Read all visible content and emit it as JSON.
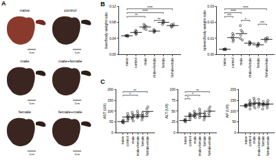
{
  "panel_labels": [
    "A",
    "B",
    "C"
  ],
  "photos": {
    "labels": [
      "naive",
      "control",
      "male",
      "male+female",
      "female",
      "female+male"
    ],
    "scale_bar": "1cm"
  },
  "chart_data": [
    {
      "type": "scatter",
      "y_label": "liver/body weight ratio",
      "categories": [
        "naive",
        "control",
        "male",
        "male+female",
        "female",
        "female+male"
      ],
      "values": [
        [
          0.045,
          0.046,
          0.047,
          0.048,
          0.046,
          0.047
        ],
        [
          0.05,
          0.055,
          0.052,
          0.058,
          0.054,
          0.06
        ],
        [
          0.062,
          0.068,
          0.075,
          0.07,
          0.065,
          0.072
        ],
        [
          0.055,
          0.06,
          0.058,
          0.062,
          0.057
        ],
        [
          0.075,
          0.08,
          0.085,
          0.078,
          0.082
        ],
        [
          0.068,
          0.074,
          0.07,
          0.076,
          0.072
        ]
      ],
      "means": [
        0.0465,
        0.0548,
        0.0687,
        0.0584,
        0.08,
        0.072
      ],
      "marker": "circle",
      "color": "#222222",
      "ylim": [
        0,
        0.12
      ],
      "yticks": [
        {
          "value": 0,
          "label": "0.00"
        },
        {
          "value": 0.04,
          "label": "0.04"
        },
        {
          "value": 0.08,
          "label": "0.08"
        },
        {
          "value": 0.12,
          "label": "0.12"
        }
      ],
      "comparisons": [
        {
          "from": 0,
          "to": 5,
          "label": "****"
        },
        {
          "from": 0,
          "to": 4,
          "label": "****"
        },
        {
          "from": 0,
          "to": 2,
          "label": "**"
        },
        {
          "from": 3,
          "to": 4,
          "label": "**"
        }
      ]
    },
    {
      "type": "scatter",
      "y_label": "spleen/body weight ratio",
      "categories": [
        "naive",
        "control",
        "male",
        "male+female",
        "female",
        "female+male"
      ],
      "values": [
        [
          0.003,
          0.0032,
          0.0035,
          0.003,
          0.0033,
          0.0031
        ],
        [
          0.008,
          0.011,
          0.01,
          0.013,
          0.009,
          0.012
        ],
        [
          0.009,
          0.012,
          0.015,
          0.018,
          0.01,
          0.014
        ],
        [
          0.006,
          0.007,
          0.008,
          0.0065,
          0.0075
        ],
        [
          0.005,
          0.006,
          0.0055,
          0.007,
          0.0065
        ],
        [
          0.008,
          0.01,
          0.009,
          0.0095,
          0.0105
        ]
      ],
      "means": [
        0.0032,
        0.0105,
        0.013,
        0.007,
        0.006,
        0.0094
      ],
      "marker": "circle",
      "color": "#222222",
      "ylim": [
        0,
        0.03
      ],
      "yticks": [
        {
          "value": 0,
          "label": "0.00"
        },
        {
          "value": 0.01,
          "label": "0.01"
        },
        {
          "value": 0.02,
          "label": "0.02"
        },
        {
          "value": 0.03,
          "label": "0.03"
        }
      ],
      "comparisons": [
        {
          "from": 0,
          "to": 5,
          "label": "****"
        },
        {
          "from": 0,
          "to": 2,
          "label": "****"
        },
        {
          "from": 0,
          "to": 1,
          "label": "***"
        },
        {
          "from": 2,
          "to": 3,
          "label": "*"
        },
        {
          "from": 4,
          "to": 5,
          "label": "***"
        }
      ]
    },
    {
      "type": "scatter",
      "y_label": "AST (U/I)",
      "categories": [
        "naive",
        "control",
        "male",
        "male+female",
        "female",
        "female+male"
      ],
      "values": [
        [
          45,
          50,
          55,
          60,
          48,
          52
        ],
        [
          60,
          70,
          80,
          75,
          65,
          90
        ],
        [
          55,
          70,
          85,
          95,
          65,
          75
        ],
        [
          70,
          80,
          90,
          100,
          75
        ],
        [
          60,
          75,
          90,
          80,
          70
        ],
        [
          80,
          95,
          110,
          120,
          90
        ]
      ],
      "means": [
        51.7,
        73.3,
        74.2,
        83,
        75,
        99
      ],
      "marker": "circle",
      "color": "#222222",
      "ylim": [
        0,
        200
      ],
      "yticks": [
        0,
        50,
        100,
        150,
        200
      ],
      "comparisons": [
        {
          "from": 0,
          "to": 5,
          "label": "**"
        },
        {
          "from": 0,
          "to": 3,
          "label": "*"
        }
      ]
    },
    {
      "type": "scatter",
      "y_label": "ALT (U/I)",
      "categories": [
        "naive",
        "control",
        "male",
        "male+female",
        "female",
        "female+male"
      ],
      "values": [
        [
          25,
          28,
          30,
          32,
          27,
          29
        ],
        [
          30,
          35,
          40,
          45,
          38,
          42
        ],
        [
          35,
          40,
          45,
          50,
          38,
          42
        ],
        [
          35,
          45,
          50,
          55,
          40
        ],
        [
          30,
          40,
          35,
          45,
          38
        ],
        [
          40,
          50,
          55,
          60,
          45
        ]
      ],
      "means": [
        28.5,
        38.3,
        41.7,
        45,
        37.6,
        50
      ],
      "marker": "circle",
      "color": "#222222",
      "ylim": [
        0,
        100
      ],
      "yticks": [
        0,
        25,
        50,
        75,
        100
      ],
      "comparisons": [
        {
          "from": 0,
          "to": 5,
          "label": "**"
        },
        {
          "from": 0,
          "to": 3,
          "label": "*"
        },
        {
          "from": 0,
          "to": 1,
          "label": "*"
        }
      ]
    },
    {
      "type": "scatter",
      "y_label": "AP (U/I)",
      "categories": [
        "naive",
        "control",
        "male",
        "male+female",
        "female",
        "female+male"
      ],
      "values": [
        [
          120,
          125,
          130,
          128,
          122,
          126
        ],
        [
          110,
          130,
          140,
          150,
          125,
          135
        ],
        [
          115,
          135,
          150,
          160,
          125,
          140
        ],
        [
          120,
          140,
          155,
          130,
          135
        ],
        [
          110,
          130,
          145,
          125,
          135
        ],
        [
          115,
          135,
          150,
          125,
          140
        ]
      ],
      "means": [
        125.2,
        131.7,
        137.5,
        136,
        129,
        133
      ],
      "marker": "circle",
      "color": "#222222",
      "ylim": [
        0,
        200
      ],
      "yticks": [
        0,
        50,
        100,
        150,
        200
      ],
      "comparisons": []
    }
  ]
}
